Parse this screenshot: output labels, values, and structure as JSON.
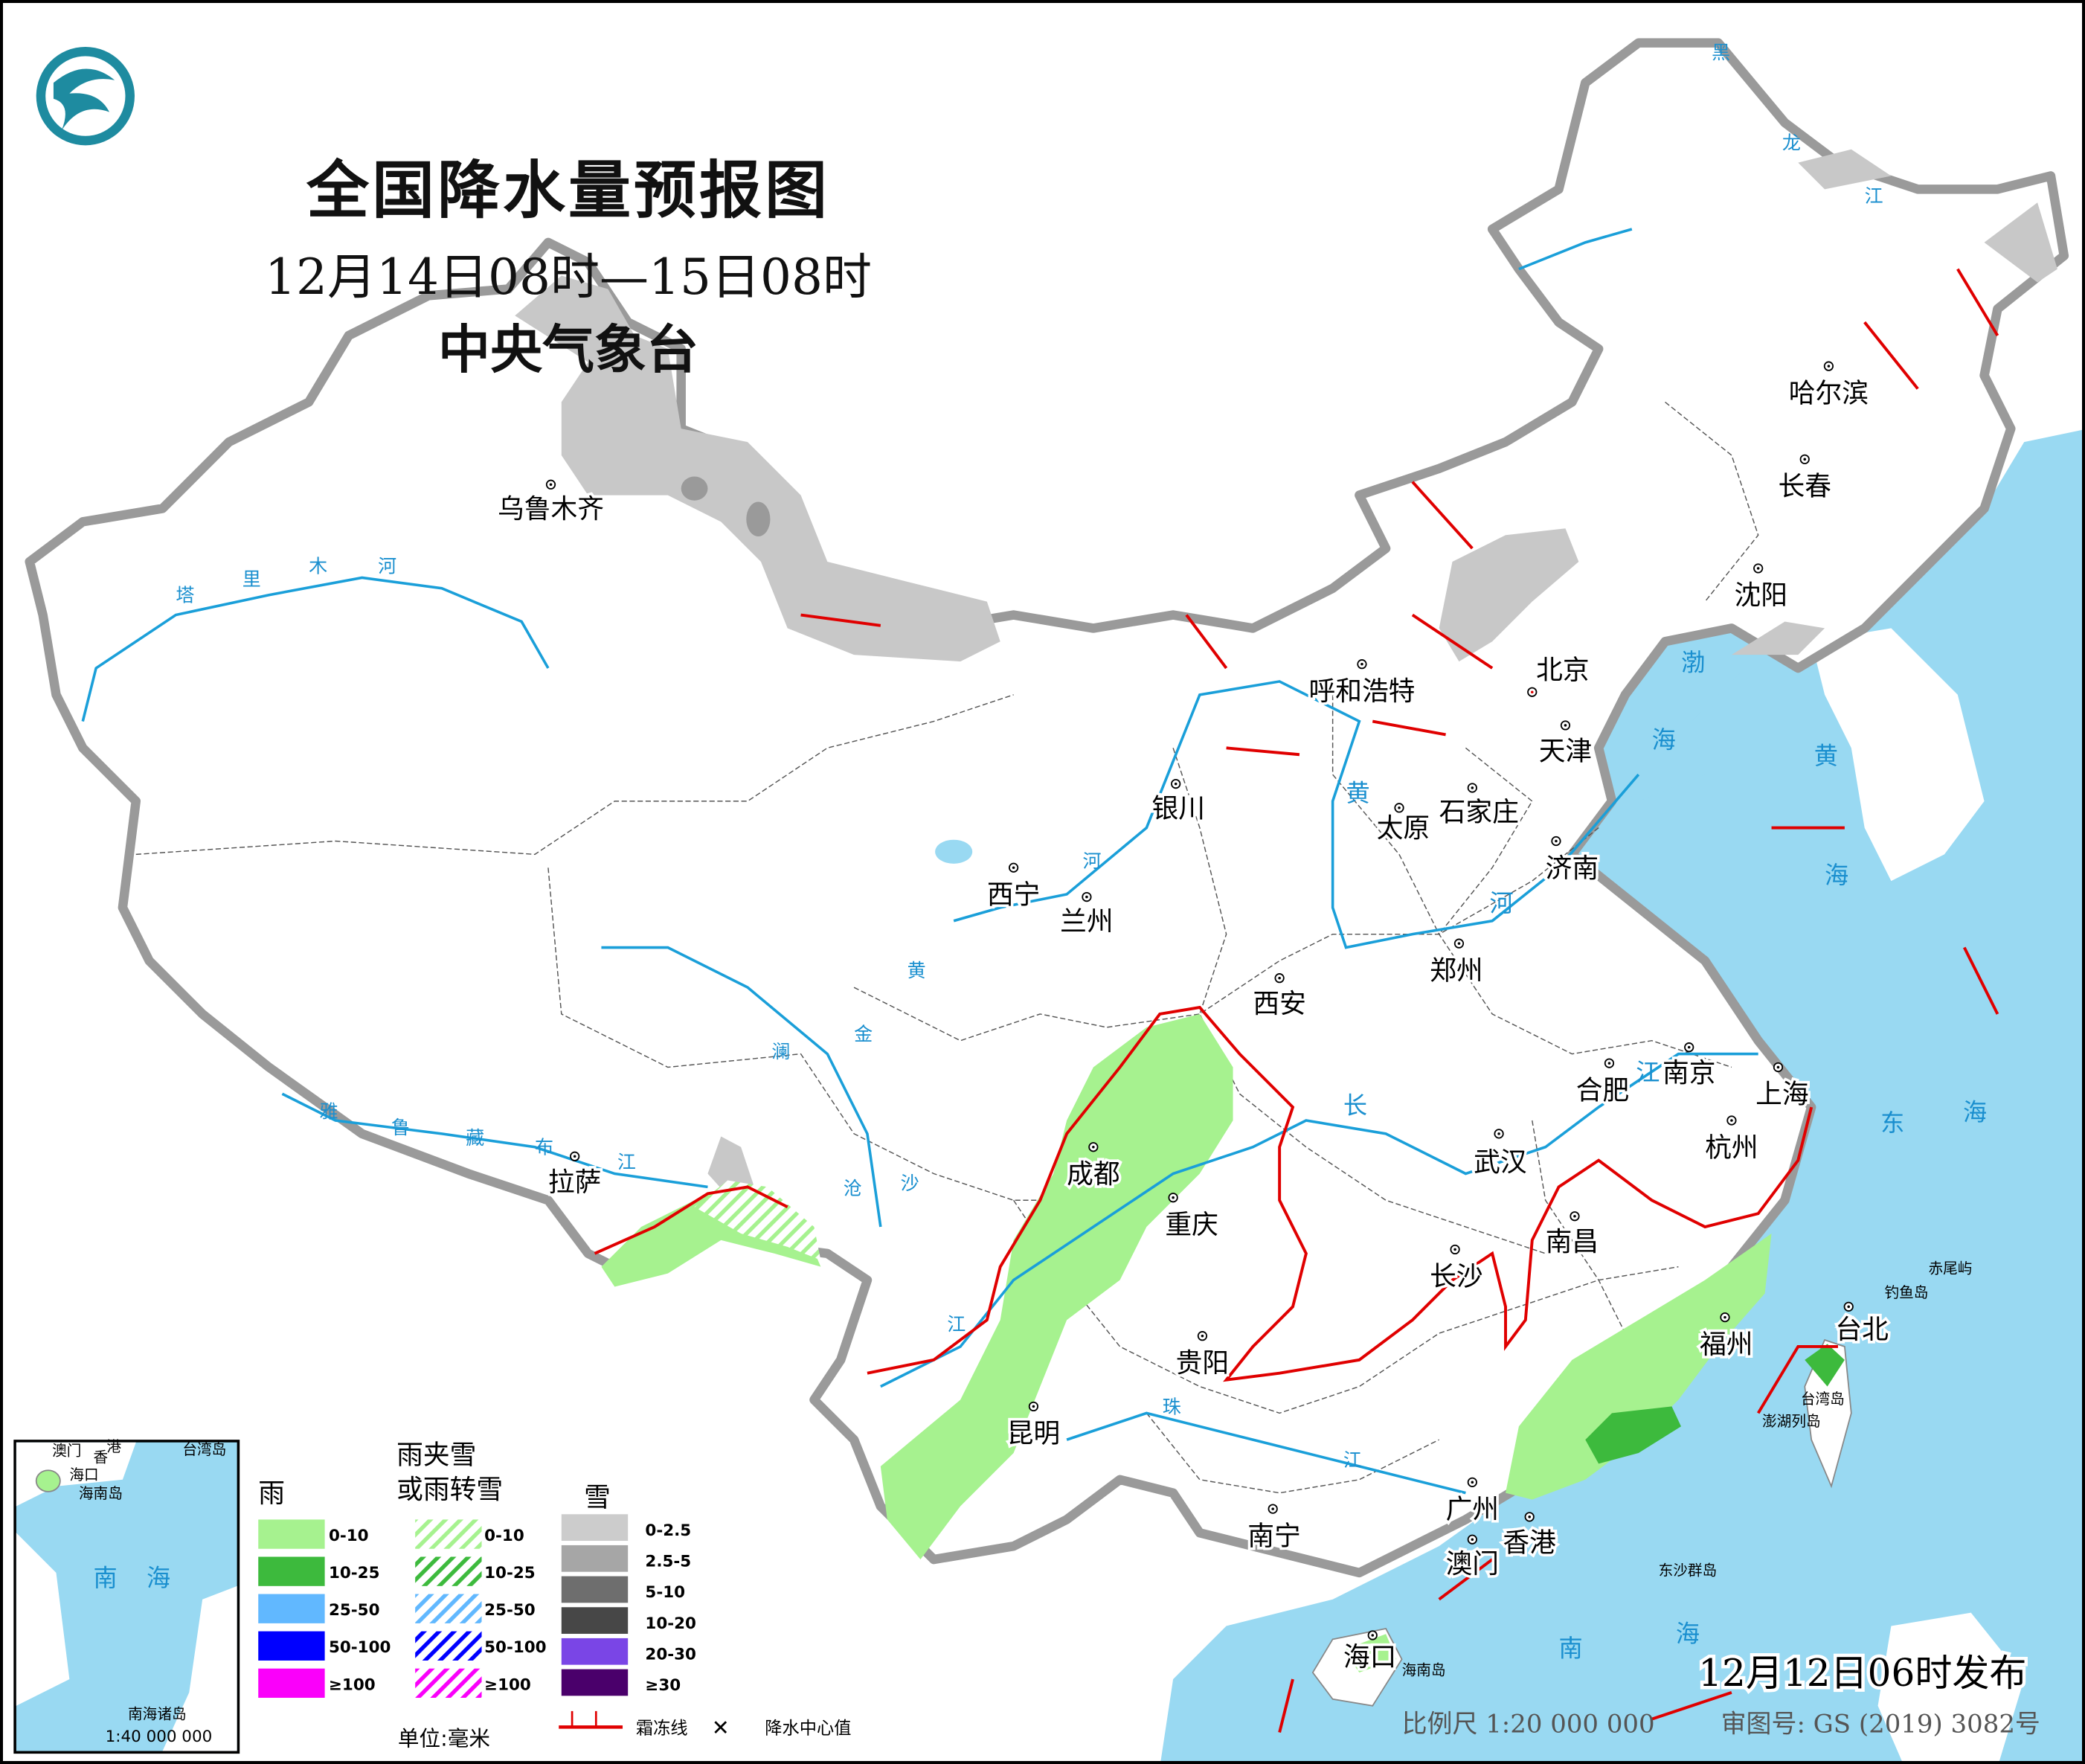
{
  "header": {
    "title": "全国降水量预报图",
    "period": "12月14日08时—15日08时",
    "issuer": "中央气象台"
  },
  "cities": [
    {
      "name": "乌鲁木齐"
    },
    {
      "name": "拉萨"
    },
    {
      "name": "西宁"
    },
    {
      "name": "兰州"
    },
    {
      "name": "银川"
    },
    {
      "name": "呼和浩特"
    },
    {
      "name": "北京"
    },
    {
      "name": "天津"
    },
    {
      "name": "石家庄"
    },
    {
      "name": "太原"
    },
    {
      "name": "济南"
    },
    {
      "name": "郑州"
    },
    {
      "name": "西安"
    },
    {
      "name": "哈尔滨"
    },
    {
      "name": "长春"
    },
    {
      "name": "沈阳"
    },
    {
      "name": "南京"
    },
    {
      "name": "合肥"
    },
    {
      "name": "上海"
    },
    {
      "name": "杭州"
    },
    {
      "name": "武汉"
    },
    {
      "name": "成都"
    },
    {
      "name": "重庆"
    },
    {
      "name": "长沙"
    },
    {
      "name": "南昌"
    },
    {
      "name": "贵阳"
    },
    {
      "name": "福州"
    },
    {
      "name": "台北"
    },
    {
      "name": "昆明"
    },
    {
      "name": "南宁"
    },
    {
      "name": "广州"
    },
    {
      "name": "香港"
    },
    {
      "name": "澳门"
    },
    {
      "name": "海口"
    }
  ],
  "rivers": [
    "塔",
    "里",
    "木",
    "河",
    "雅",
    "鲁",
    "藏",
    "布",
    "江",
    "黄",
    "河",
    "长",
    "江",
    "珠",
    "江",
    "澜",
    "沧",
    "江",
    "金",
    "沙",
    "江",
    "龙",
    "江",
    "黑"
  ],
  "seas": [
    "渤",
    "海",
    "黄",
    "海",
    "东",
    "海",
    "南",
    "海"
  ],
  "islands": [
    "台湾岛",
    "澎湖列岛",
    "赤尾屿",
    "钓鱼岛",
    "东沙群岛",
    "海南岛"
  ],
  "inset": {
    "labels": [
      "澳门",
      "香",
      "港",
      "台湾岛",
      "海口",
      "海南岛",
      "南",
      "海",
      "南海诸岛"
    ],
    "scale": "1:40 000 000"
  },
  "legend": {
    "rain": {
      "title": "雨",
      "items": [
        {
          "label": "0-10",
          "color": "#a6f28f"
        },
        {
          "label": "10-25",
          "color": "#3dba3d"
        },
        {
          "label": "25-50",
          "color": "#61b8ff"
        },
        {
          "label": "50-100",
          "color": "#0000ff"
        },
        {
          "label": "≥100",
          "color": "#fa00fa"
        }
      ]
    },
    "sleet": {
      "title_line1": "雨夹雪",
      "title_line2": "或雨转雪",
      "items": [
        {
          "label": "0-10",
          "color": "#a6f28f"
        },
        {
          "label": "10-25",
          "color": "#3dba3d"
        },
        {
          "label": "25-50",
          "color": "#61b8ff"
        },
        {
          "label": "50-100",
          "color": "#0000ff"
        },
        {
          "label": "≥100",
          "color": "#fa00fa"
        }
      ]
    },
    "snow": {
      "title": "雪",
      "items": [
        {
          "label": "0-2.5",
          "color": "#cccccc"
        },
        {
          "label": "2.5-5",
          "color": "#a6a6a6"
        },
        {
          "label": "5-10",
          "color": "#6e6e6e"
        },
        {
          "label": "10-20",
          "color": "#474747"
        },
        {
          "label": "20-30",
          "color": "#7a45e6"
        },
        {
          "label": "≥30",
          "color": "#4a006b"
        }
      ]
    },
    "unit": "单位:毫米",
    "frost_line": "霜冻线",
    "center_mark": "✕",
    "center_label": "降水中心值"
  },
  "footer": {
    "issued": "12月12日06时发布",
    "scale": "比例尺 1:20 000 000",
    "approval": "审图号: GS (2019) 3082号"
  },
  "colors": {
    "sea": "#99d9f2",
    "border": "#9a9a9a",
    "river": "#1a9fd9",
    "frost": "#e00000"
  }
}
